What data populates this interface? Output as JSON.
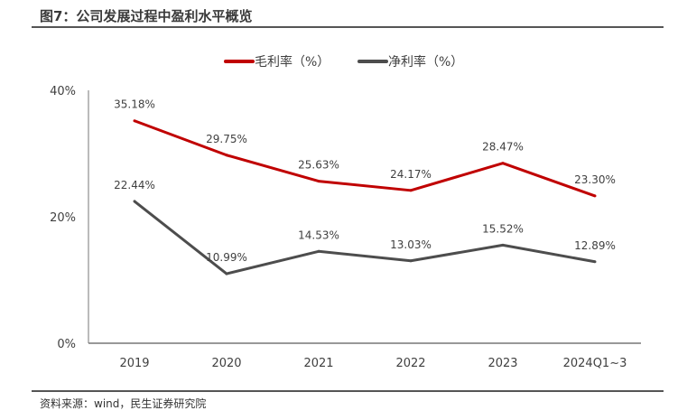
{
  "title": "图7：公司发展过程中盈利水平概览",
  "source": "资料来源：wind，民生证券研究院",
  "chart_data": {
    "type": "line",
    "title": "图7：公司发展过程中盈利水平概览",
    "categories": [
      "2019",
      "2020",
      "2021",
      "2022",
      "2023",
      "2024Q1~3"
    ],
    "series": [
      {
        "name": "毛利率（%）",
        "color": "#c00000",
        "values": [
          35.18,
          29.75,
          25.63,
          24.17,
          28.47,
          23.3
        ],
        "labels": [
          "35.18%",
          "29.75%",
          "25.63%",
          "24.17%",
          "28.47%",
          "23.30%"
        ]
      },
      {
        "name": "净利率（%）",
        "color": "#4d4d4d",
        "values": [
          22.44,
          10.99,
          14.53,
          13.03,
          15.52,
          12.89
        ],
        "labels": [
          "22.44%",
          "10.99%",
          "14.53%",
          "13.03%",
          "15.52%",
          "12.89%"
        ]
      }
    ],
    "ylim": [
      0,
      40
    ],
    "yticks": [
      0,
      20,
      40
    ],
    "ytick_labels": [
      "0%",
      "20%",
      "40%"
    ],
    "grid": false,
    "legend_position": "top-center"
  }
}
